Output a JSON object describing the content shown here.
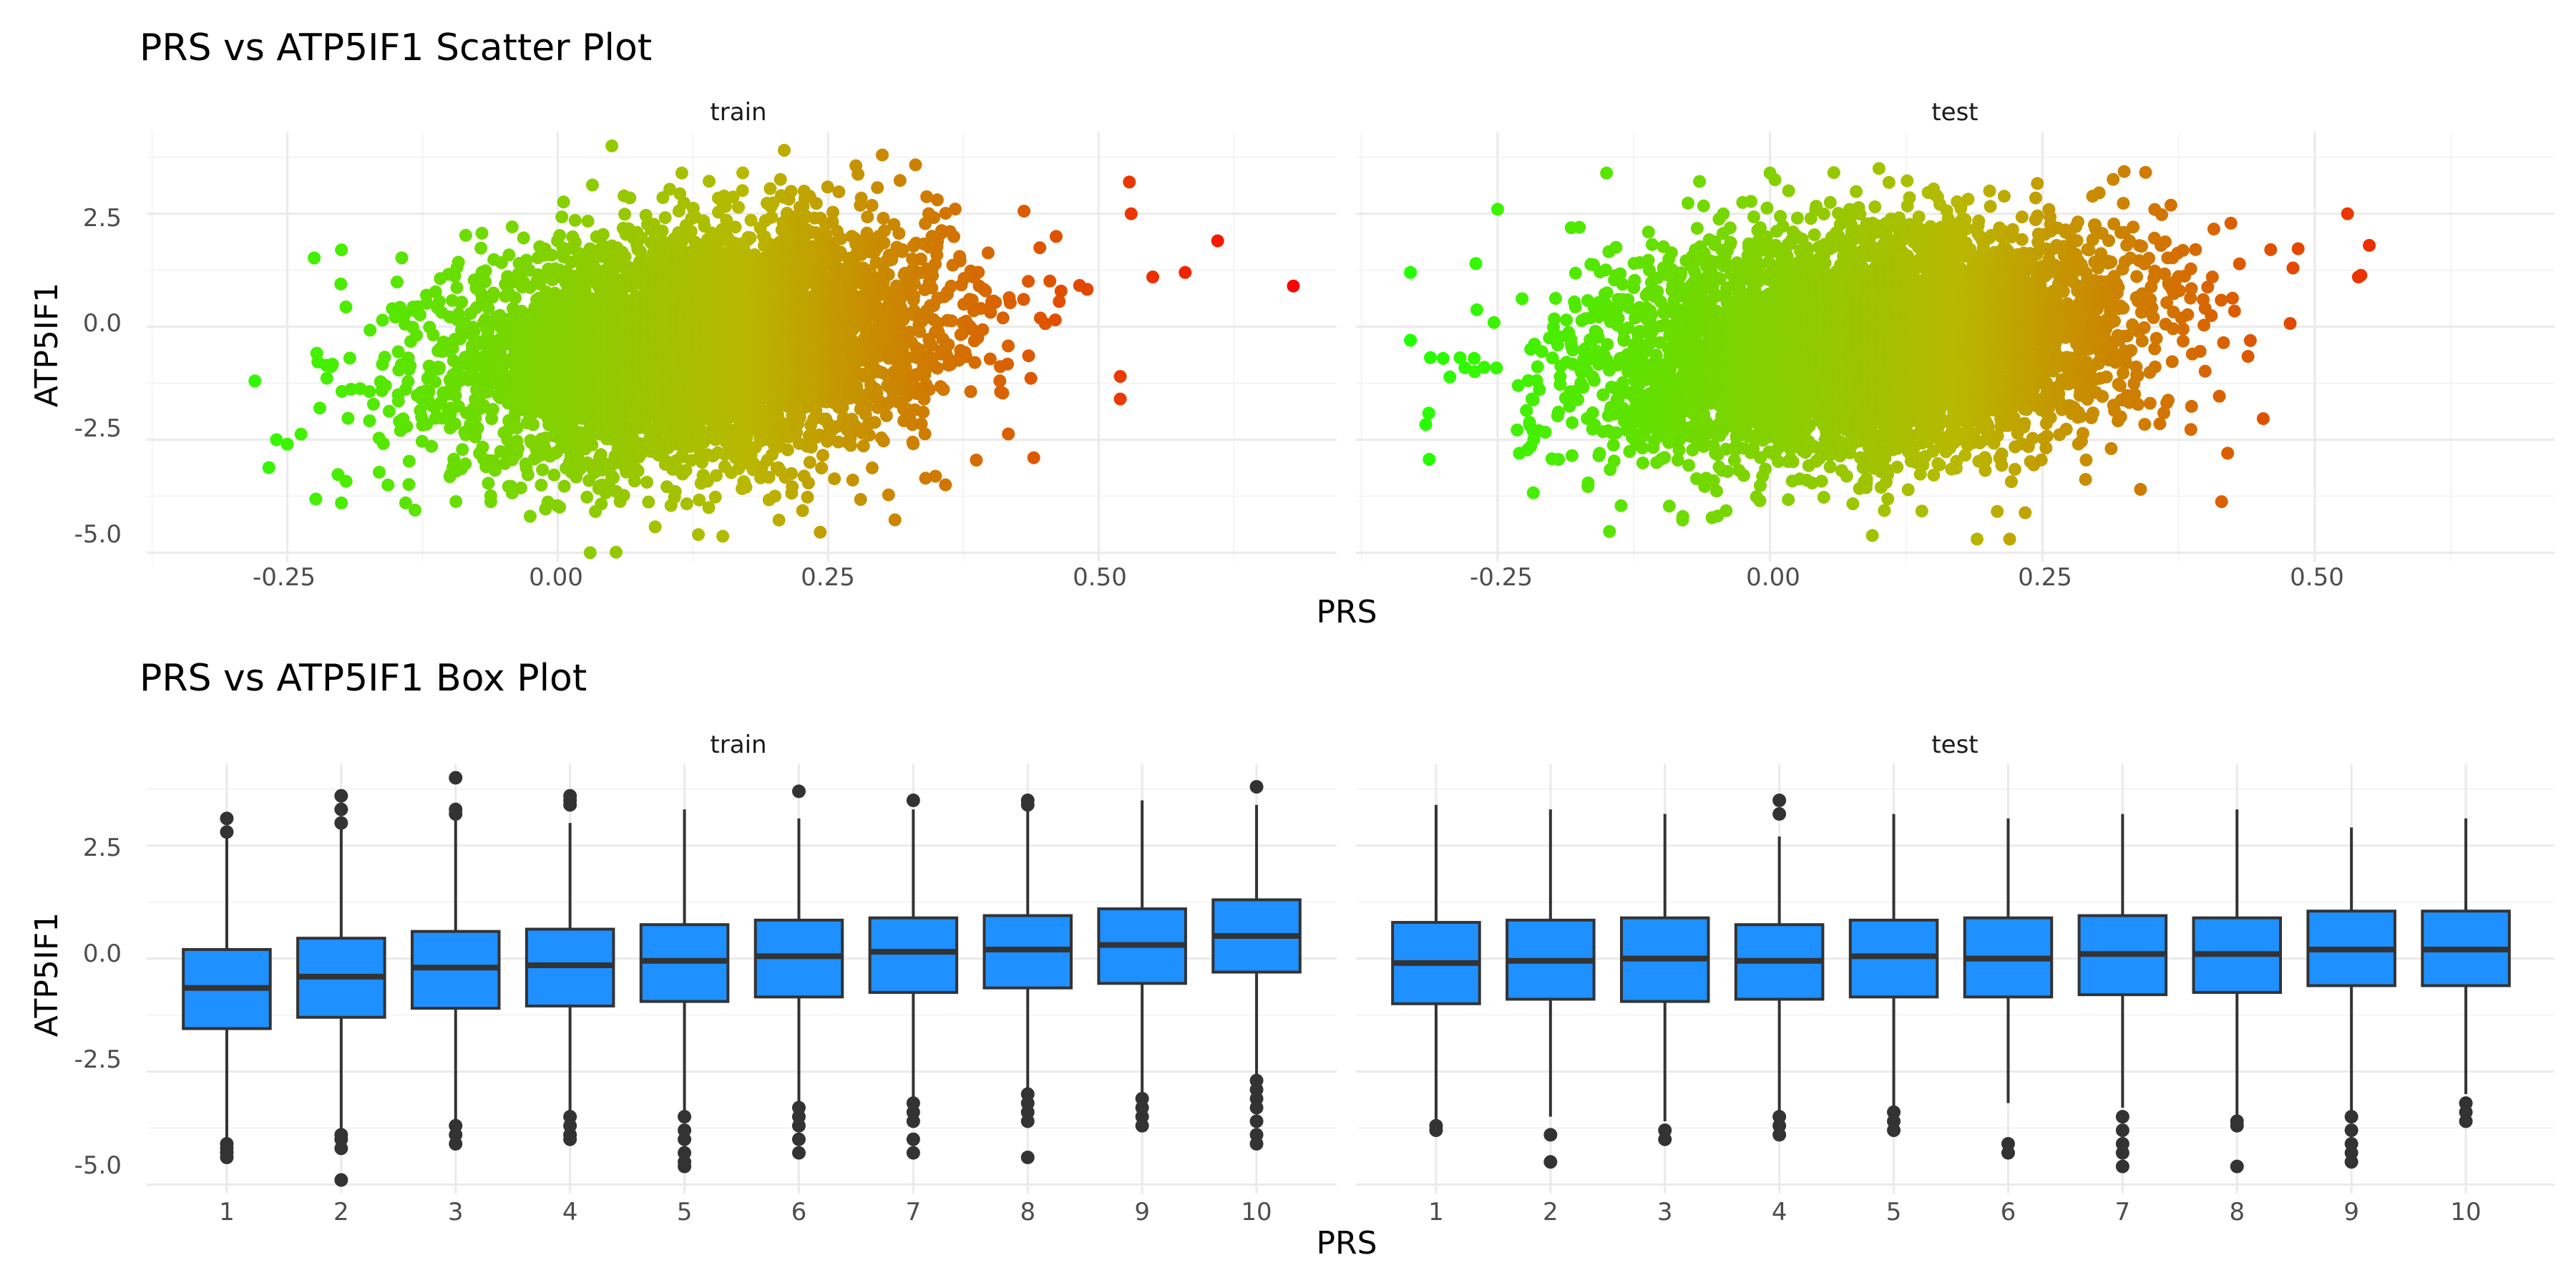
{
  "colors": {
    "low": "#22ff00",
    "mid": "#b8b800",
    "high": "#ff0000",
    "box_fill": "#1e90ff",
    "box_line": "#333333"
  },
  "chart_data": [
    {
      "type": "scatter",
      "title": "PRS vs ATP5IF1 Scatter Plot",
      "xlabel": "PRS",
      "ylabel": "ATP5IF1",
      "xlim": [
        -0.38,
        0.72
      ],
      "ylim": [
        -5.2,
        4.3
      ],
      "x_ticks": [
        "-0.25",
        "0.00",
        "0.25",
        "0.50"
      ],
      "y_ticks": [
        "-5.0",
        "-2.5",
        "0.0",
        "2.5"
      ],
      "color_scale": "gradient by PRS: green (low) to red (high)",
      "grid": true,
      "panels": [
        {
          "name": "train",
          "cloud": {
            "x_mean": 0.13,
            "x_sd": 0.11,
            "y_mean": -0.4,
            "y_sd": 1.25,
            "slope": 2.2,
            "x_range": [
              -0.28,
              0.68
            ],
            "y_range": [
              -5.0,
              4.0
            ]
          },
          "points": [
            {
              "x": -0.28,
              "y": -1.2
            },
            {
              "x": -0.26,
              "y": -2.5
            },
            {
              "x": -0.25,
              "y": -2.6
            },
            {
              "x": -0.2,
              "y": -3.9
            },
            {
              "x": -0.2,
              "y": 1.7
            },
            {
              "x": -0.22,
              "y": -1.8
            },
            {
              "x": 0.03,
              "y": -5.0
            },
            {
              "x": 0.05,
              "y": 4.0
            },
            {
              "x": 0.13,
              "y": -4.6
            },
            {
              "x": 0.3,
              "y": 3.8
            },
            {
              "x": 0.53,
              "y": 2.5
            },
            {
              "x": 0.61,
              "y": 1.9
            },
            {
              "x": 0.58,
              "y": 1.2
            },
            {
              "x": 0.55,
              "y": 1.1
            },
            {
              "x": 0.52,
              "y": -1.1
            },
            {
              "x": 0.52,
              "y": -1.6
            },
            {
              "x": 0.44,
              "y": -2.9
            },
            {
              "x": 0.68,
              "y": 0.9
            }
          ]
        },
        {
          "name": "test",
          "cloud": {
            "x_mean": 0.09,
            "x_sd": 0.12,
            "y_mean": -0.35,
            "y_sd": 1.25,
            "slope": 2.0,
            "x_range": [
              -0.33,
              0.56
            ],
            "y_range": [
              -4.7,
              3.5
            ]
          },
          "points": [
            {
              "x": -0.33,
              "y": -0.3
            },
            {
              "x": -0.33,
              "y": 1.2
            },
            {
              "x": -0.3,
              "y": -0.7
            },
            {
              "x": -0.27,
              "y": 1.4
            },
            {
              "x": -0.25,
              "y": 2.6
            },
            {
              "x": -0.23,
              "y": -2.8
            },
            {
              "x": -0.15,
              "y": 3.4
            },
            {
              "x": -0.08,
              "y": -4.2
            },
            {
              "x": 0.0,
              "y": 3.4
            },
            {
              "x": 0.1,
              "y": 3.5
            },
            {
              "x": 0.19,
              "y": -4.7
            },
            {
              "x": 0.22,
              "y": -4.7
            },
            {
              "x": 0.34,
              "y": -3.6
            },
            {
              "x": 0.42,
              "y": -2.8
            },
            {
              "x": 0.53,
              "y": 2.5
            },
            {
              "x": 0.55,
              "y": 1.8
            },
            {
              "x": 0.54,
              "y": 1.1
            },
            {
              "x": 0.48,
              "y": 1.3
            }
          ]
        }
      ]
    },
    {
      "type": "box",
      "title": "PRS vs ATP5IF1 Box Plot",
      "xlabel": "PRS",
      "ylabel": "ATP5IF1",
      "ylim": [
        -5.2,
        4.3
      ],
      "categories": [
        "1",
        "2",
        "3",
        "4",
        "5",
        "6",
        "7",
        "8",
        "9",
        "10"
      ],
      "y_ticks": [
        "-5.0",
        "-2.5",
        "0.0",
        "2.5"
      ],
      "grid": true,
      "panels": [
        {
          "name": "train",
          "boxes": [
            {
              "category": "1",
              "q1": -1.55,
              "median": -0.65,
              "q3": 0.2,
              "whisker_low": -4.0,
              "whisker_high": 2.7,
              "outliers": [
                3.1,
                2.8,
                -4.1,
                -4.2,
                -4.3,
                -4.4
              ]
            },
            {
              "category": "2",
              "q1": -1.3,
              "median": -0.4,
              "q3": 0.45,
              "whisker_low": -3.8,
              "whisker_high": 2.9,
              "outliers": [
                3.6,
                3.3,
                3.0,
                -3.9,
                -4.0,
                -4.2,
                -4.9
              ]
            },
            {
              "category": "3",
              "q1": -1.1,
              "median": -0.2,
              "q3": 0.6,
              "whisker_low": -3.6,
              "whisker_high": 3.1,
              "outliers": [
                4.0,
                3.3,
                3.2,
                -3.7,
                -3.9,
                -4.1
              ]
            },
            {
              "category": "4",
              "q1": -1.05,
              "median": -0.15,
              "q3": 0.65,
              "whisker_low": -3.4,
              "whisker_high": 3.0,
              "outliers": [
                3.6,
                3.5,
                3.4,
                -3.5,
                -3.7,
                -3.9,
                -4.0
              ]
            },
            {
              "category": "5",
              "q1": -0.95,
              "median": -0.05,
              "q3": 0.75,
              "whisker_low": -3.4,
              "whisker_high": 3.3,
              "outliers": [
                -3.5,
                -3.8,
                -4.0,
                -4.3,
                -4.5,
                -4.6
              ]
            },
            {
              "category": "6",
              "q1": -0.85,
              "median": 0.05,
              "q3": 0.85,
              "whisker_low": -3.2,
              "whisker_high": 3.1,
              "outliers": [
                3.7,
                -3.3,
                -3.5,
                -3.7,
                -4.0,
                -4.3
              ]
            },
            {
              "category": "7",
              "q1": -0.75,
              "median": 0.15,
              "q3": 0.9,
              "whisker_low": -3.1,
              "whisker_high": 3.3,
              "outliers": [
                3.5,
                -3.2,
                -3.4,
                -3.6,
                -4.0,
                -4.3
              ]
            },
            {
              "category": "8",
              "q1": -0.65,
              "median": 0.2,
              "q3": 0.95,
              "whisker_low": -2.9,
              "whisker_high": 3.3,
              "outliers": [
                3.5,
                3.4,
                -3.0,
                -3.2,
                -3.4,
                -3.6,
                -4.4
              ]
            },
            {
              "category": "9",
              "q1": -0.55,
              "median": 0.3,
              "q3": 1.1,
              "whisker_low": -3.0,
              "whisker_high": 3.5,
              "outliers": [
                -3.1,
                -3.3,
                -3.5,
                -3.7
              ]
            },
            {
              "category": "10",
              "q1": -0.3,
              "median": 0.5,
              "q3": 1.3,
              "whisker_low": -2.6,
              "whisker_high": 3.4,
              "outliers": [
                3.8,
                -2.7,
                -2.9,
                -3.1,
                -3.3,
                -3.6,
                -3.9,
                -4.1
              ]
            }
          ]
        },
        {
          "name": "test",
          "boxes": [
            {
              "category": "1",
              "q1": -1.0,
              "median": -0.1,
              "q3": 0.8,
              "whisker_low": -3.6,
              "whisker_high": 3.4,
              "outliers": [
                -3.7,
                -3.8
              ]
            },
            {
              "category": "2",
              "q1": -0.9,
              "median": -0.05,
              "q3": 0.85,
              "whisker_low": -3.5,
              "whisker_high": 3.3,
              "outliers": [
                -3.9,
                -4.5
              ]
            },
            {
              "category": "3",
              "q1": -0.95,
              "median": 0.0,
              "q3": 0.9,
              "whisker_low": -3.6,
              "whisker_high": 3.2,
              "outliers": [
                -3.8,
                -4.0
              ]
            },
            {
              "category": "4",
              "q1": -0.9,
              "median": -0.05,
              "q3": 0.75,
              "whisker_low": -3.4,
              "whisker_high": 2.7,
              "outliers": [
                3.5,
                3.2,
                -3.5,
                -3.7,
                -3.9
              ]
            },
            {
              "category": "5",
              "q1": -0.85,
              "median": 0.05,
              "q3": 0.85,
              "whisker_low": -3.3,
              "whisker_high": 3.2,
              "outliers": [
                -3.4,
                -3.6,
                -3.8
              ]
            },
            {
              "category": "6",
              "q1": -0.85,
              "median": 0.0,
              "q3": 0.9,
              "whisker_low": -3.2,
              "whisker_high": 3.1,
              "outliers": [
                -4.1,
                -4.3
              ]
            },
            {
              "category": "7",
              "q1": -0.8,
              "median": 0.1,
              "q3": 0.95,
              "whisker_low": -3.3,
              "whisker_high": 3.2,
              "outliers": [
                -3.5,
                -3.8,
                -4.1,
                -4.3,
                -4.6
              ]
            },
            {
              "category": "8",
              "q1": -0.75,
              "median": 0.1,
              "q3": 0.9,
              "whisker_low": -3.5,
              "whisker_high": 3.3,
              "outliers": [
                -3.6,
                -3.7,
                -4.6
              ]
            },
            {
              "category": "9",
              "q1": -0.6,
              "median": 0.2,
              "q3": 1.05,
              "whisker_low": -3.4,
              "whisker_high": 2.9,
              "outliers": [
                -3.5,
                -3.8,
                -4.1,
                -4.3,
                -4.5
              ]
            },
            {
              "category": "10",
              "q1": -0.6,
              "median": 0.2,
              "q3": 1.05,
              "whisker_low": -3.0,
              "whisker_high": 3.1,
              "outliers": [
                -3.2,
                -3.4,
                -3.6
              ]
            }
          ]
        }
      ]
    }
  ]
}
